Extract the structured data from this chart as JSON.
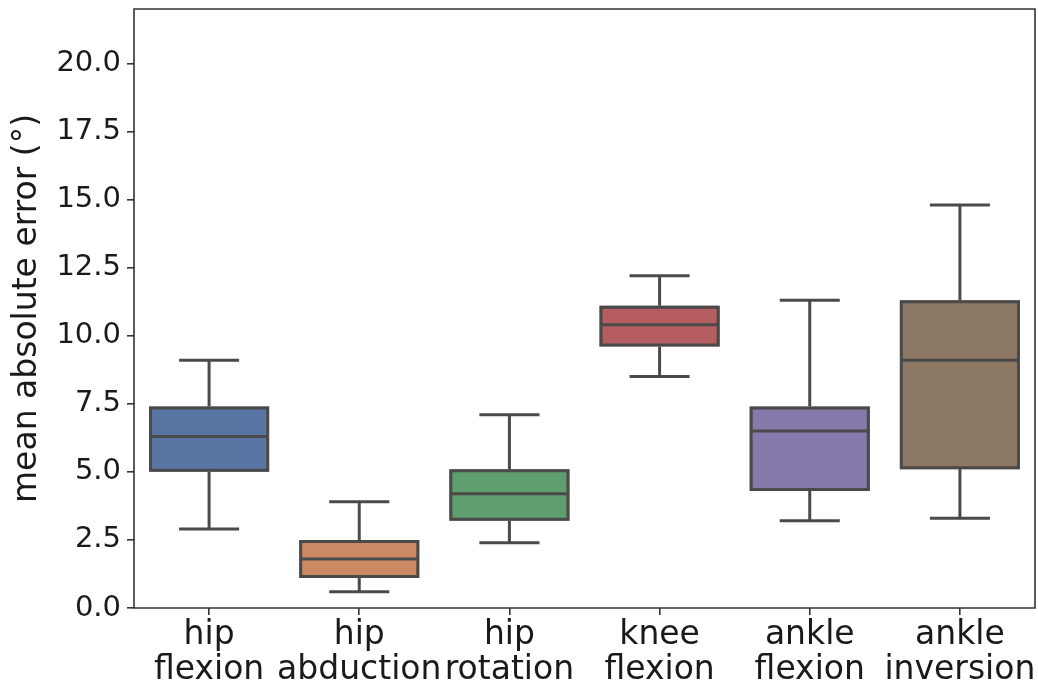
{
  "chart_data": {
    "type": "box",
    "ylabel": "mean absolute error (°)",
    "categories": [
      "hip flexion",
      "hip abduction",
      "hip rotation",
      "knee flexion",
      "ankle flexion",
      "ankle inversion"
    ],
    "colors": [
      "#5875a4",
      "#cc8963",
      "#5f9e6e",
      "#b55d60",
      "#857aab",
      "#8d7866"
    ],
    "boxes": [
      {
        "low": 2.9,
        "q1": 5.0,
        "median": 6.3,
        "q3": 7.4,
        "high": 9.1
      },
      {
        "low": 0.6,
        "q1": 1.1,
        "median": 1.8,
        "q3": 2.5,
        "high": 3.9
      },
      {
        "low": 2.4,
        "q1": 3.2,
        "median": 4.2,
        "q3": 5.1,
        "high": 7.1
      },
      {
        "low": 8.5,
        "q1": 9.6,
        "median": 10.4,
        "q3": 11.1,
        "high": 12.2
      },
      {
        "low": 3.2,
        "q1": 4.3,
        "median": 6.5,
        "q3": 7.4,
        "high": 11.3
      },
      {
        "low": 3.3,
        "q1": 5.1,
        "median": 9.1,
        "q3": 11.3,
        "high": 14.8
      }
    ],
    "ylim": [
      0,
      22
    ],
    "yticks": [
      {
        "value": 0,
        "label": "0.0"
      },
      2.5,
      {
        "value": 5,
        "label": "5.0"
      },
      7.5,
      {
        "value": 10,
        "label": "10.0"
      },
      12.5,
      {
        "value": 15,
        "label": "15.0"
      },
      17.5,
      {
        "value": 20,
        "label": "20.0"
      }
    ]
  }
}
